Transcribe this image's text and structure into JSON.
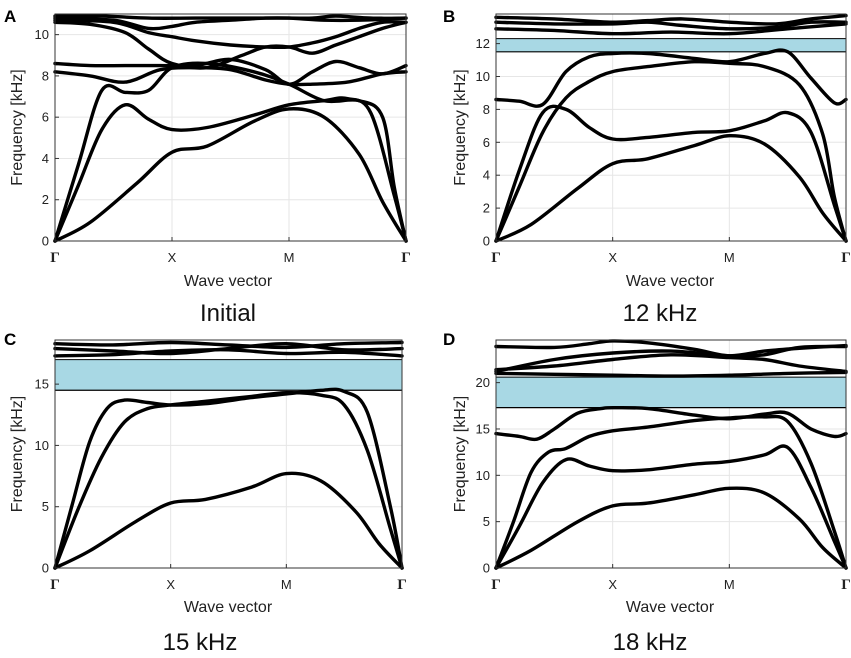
{
  "figure": {
    "panels": [
      {
        "letter": "A",
        "caption": "Initial"
      },
      {
        "letter": "B",
        "caption": "12 kHz"
      },
      {
        "letter": "C",
        "caption": "15 kHz"
      },
      {
        "letter": "D",
        "caption": "18 kHz"
      }
    ]
  },
  "colors": {
    "band_gap": "#a8d8e4",
    "curve": "#000000",
    "grid": "#e6e6e6"
  },
  "chart_data": [
    {
      "type": "line",
      "panel": "A",
      "caption": "Initial",
      "xlabel": "Wave vector",
      "ylabel": "Frequency [kHz]",
      "x_ticks": [
        0,
        1,
        2,
        3
      ],
      "x_tick_labels": [
        "Γ",
        "X",
        "M",
        "Γ"
      ],
      "xlim": [
        0,
        3
      ],
      "ylim": [
        0,
        11
      ],
      "y_ticks": [
        0,
        2,
        4,
        6,
        8,
        10
      ],
      "band_gap": null,
      "series": [
        {
          "name": "band 1",
          "x": [
            0,
            0.3,
            0.7,
            1.0,
            1.3,
            1.7,
            2.0,
            2.3,
            2.6,
            2.8,
            3.0
          ],
          "y": [
            0,
            0.9,
            2.8,
            4.3,
            4.6,
            5.8,
            6.4,
            6.0,
            4.2,
            1.9,
            0
          ]
        },
        {
          "name": "band 2",
          "x": [
            0,
            0.2,
            0.4,
            0.6,
            0.8,
            1.0,
            1.3,
            1.7,
            2.0,
            2.3,
            2.5,
            2.7,
            2.9,
            3.0
          ],
          "y": [
            0,
            2.7,
            5.4,
            6.6,
            5.9,
            5.4,
            5.5,
            6.1,
            6.6,
            6.8,
            6.9,
            6.2,
            2.2,
            0
          ]
        },
        {
          "name": "band 3",
          "x": [
            0,
            0.2,
            0.4,
            0.6,
            0.8,
            1.0,
            1.3,
            1.7,
            2.0,
            2.3,
            2.6,
            2.8,
            2.9,
            3.0
          ],
          "y": [
            0,
            3.7,
            7.3,
            7.2,
            7.3,
            8.4,
            8.6,
            8.2,
            7.6,
            6.8,
            6.8,
            6.0,
            2.6,
            0
          ]
        },
        {
          "name": "band 4",
          "x": [
            0,
            0.3,
            0.6,
            0.9,
            1.2,
            1.5,
            1.8,
            2.0,
            2.2,
            2.5,
            2.8,
            3.0
          ],
          "y": [
            8.2,
            8.0,
            7.7,
            8.3,
            8.4,
            8.3,
            7.8,
            7.6,
            7.6,
            7.7,
            8.1,
            8.2
          ]
        },
        {
          "name": "band 5",
          "x": [
            0,
            0.3,
            0.6,
            0.9,
            1.2,
            1.5,
            1.8,
            2.0,
            2.2,
            2.4,
            2.6,
            2.8,
            3.0
          ],
          "y": [
            8.6,
            8.5,
            8.5,
            8.5,
            8.5,
            8.8,
            8.3,
            7.6,
            8.2,
            8.7,
            8.4,
            8.1,
            8.5
          ]
        },
        {
          "name": "band 6",
          "x": [
            0,
            0.3,
            0.6,
            0.8,
            1.0,
            1.3,
            1.6,
            1.8,
            2.0,
            2.2,
            2.4,
            2.6,
            2.8,
            3.0
          ],
          "y": [
            10.6,
            10.5,
            10.1,
            9.3,
            8.6,
            8.4,
            9.0,
            9.4,
            9.4,
            9.1,
            9.5,
            9.9,
            10.3,
            10.6
          ]
        },
        {
          "name": "band 7",
          "x": [
            0,
            0.5,
            0.8,
            1.0,
            1.2,
            1.5,
            1.8,
            2.0,
            2.2,
            2.4,
            2.6,
            2.8,
            3.0
          ],
          "y": [
            10.7,
            10.6,
            10.1,
            9.9,
            9.7,
            9.5,
            9.4,
            9.4,
            9.6,
            9.9,
            10.3,
            10.6,
            10.6
          ]
        },
        {
          "name": "band 8",
          "x": [
            0,
            0.5,
            0.8,
            1.0,
            1.2,
            1.5,
            1.8,
            2.0,
            2.3,
            2.6,
            3.0
          ],
          "y": [
            10.8,
            10.7,
            10.3,
            10.4,
            10.6,
            10.7,
            10.8,
            10.8,
            10.7,
            10.7,
            10.8
          ]
        },
        {
          "name": "band 9",
          "x": [
            0,
            0.4,
            0.8,
            1.2,
            1.6,
            2.0,
            2.2,
            2.4,
            2.7,
            3.0
          ],
          "y": [
            10.9,
            10.9,
            10.8,
            10.8,
            10.8,
            10.8,
            10.8,
            10.9,
            10.8,
            10.8
          ]
        }
      ]
    },
    {
      "type": "line",
      "panel": "B",
      "caption": "12 kHz",
      "xlabel": "Wave vector",
      "ylabel": "Frequency [kHz]",
      "x_ticks": [
        0,
        1,
        2,
        3
      ],
      "x_tick_labels": [
        "Γ",
        "X",
        "M",
        "Γ"
      ],
      "xlim": [
        0,
        3
      ],
      "ylim": [
        0,
        13.8
      ],
      "y_ticks": [
        0,
        2,
        4,
        6,
        8,
        10,
        12
      ],
      "band_gap": [
        11.5,
        12.3
      ],
      "series": [
        {
          "name": "band 1",
          "x": [
            0,
            0.3,
            0.7,
            1.0,
            1.3,
            1.7,
            2.0,
            2.3,
            2.6,
            2.8,
            3.0
          ],
          "y": [
            0,
            1.0,
            3.2,
            4.7,
            5.0,
            5.8,
            6.4,
            5.9,
            3.9,
            1.7,
            0
          ]
        },
        {
          "name": "band 2",
          "x": [
            0,
            0.2,
            0.4,
            0.6,
            0.8,
            1.0,
            1.3,
            1.7,
            2.0,
            2.3,
            2.5,
            2.7,
            2.9,
            3.0
          ],
          "y": [
            0,
            4.3,
            7.8,
            8.0,
            6.9,
            6.2,
            6.3,
            6.6,
            6.7,
            7.3,
            7.8,
            6.6,
            2.2,
            0
          ]
        },
        {
          "name": "band 3",
          "x": [
            0,
            0.2,
            0.4,
            0.6,
            0.8,
            1.0,
            1.3,
            1.7,
            2.0,
            2.3,
            2.6,
            2.8,
            2.9,
            3.0
          ],
          "y": [
            0,
            3.3,
            6.6,
            8.7,
            9.7,
            10.3,
            10.6,
            10.9,
            10.8,
            10.6,
            9.5,
            6.5,
            2.7,
            0
          ]
        },
        {
          "name": "band 4",
          "x": [
            0,
            0.2,
            0.4,
            0.6,
            0.8,
            1.0,
            1.3,
            1.7,
            2.0,
            2.3,
            2.5,
            2.7,
            2.9,
            3.0
          ],
          "y": [
            8.6,
            8.5,
            8.3,
            10.3,
            11.2,
            11.4,
            11.4,
            11.1,
            10.9,
            11.4,
            11.5,
            9.9,
            8.4,
            8.6
          ]
        },
        {
          "name": "band 5",
          "x": [
            0,
            0.5,
            1.0,
            1.5,
            2.0,
            2.5,
            3.0
          ],
          "y": [
            12.9,
            12.8,
            12.6,
            12.7,
            12.6,
            12.9,
            13.2
          ]
        },
        {
          "name": "band 6",
          "x": [
            0,
            0.5,
            1.0,
            1.3,
            1.6,
            2.0,
            2.4,
            2.7,
            3.0
          ],
          "y": [
            13.3,
            13.2,
            13.2,
            13.3,
            13.1,
            12.9,
            13.0,
            13.3,
            13.3
          ]
        },
        {
          "name": "band 7",
          "x": [
            0,
            0.5,
            1.0,
            1.3,
            1.6,
            2.0,
            2.4,
            2.7,
            3.0
          ],
          "y": [
            13.6,
            13.5,
            13.3,
            13.4,
            13.5,
            13.3,
            13.2,
            13.5,
            13.7
          ]
        }
      ]
    },
    {
      "type": "line",
      "panel": "C",
      "caption": "15 kHz",
      "xlabel": "Wave vector",
      "ylabel": "Frequency [kHz]",
      "x_ticks": [
        0,
        1,
        2,
        3
      ],
      "x_tick_labels": [
        "Γ",
        "X",
        "M",
        "Γ"
      ],
      "xlim": [
        0,
        3
      ],
      "ylim": [
        0,
        18.6
      ],
      "y_ticks": [
        0,
        5,
        10,
        15
      ],
      "band_gap": [
        14.5,
        17.0
      ],
      "series": [
        {
          "name": "band 1",
          "x": [
            0,
            0.3,
            0.7,
            1.0,
            1.3,
            1.7,
            2.0,
            2.3,
            2.6,
            2.8,
            3.0
          ],
          "y": [
            0,
            1.4,
            3.8,
            5.3,
            5.6,
            6.6,
            7.7,
            7.1,
            4.6,
            2.0,
            0
          ]
        },
        {
          "name": "band 2",
          "x": [
            0,
            0.2,
            0.4,
            0.6,
            0.8,
            1.0,
            1.3,
            1.7,
            2.0,
            2.3,
            2.5,
            2.7,
            2.9,
            3.0
          ],
          "y": [
            0,
            4.8,
            9.0,
            11.9,
            13.0,
            13.3,
            13.6,
            14.0,
            14.3,
            14.1,
            13.3,
            9.6,
            3.2,
            0
          ]
        },
        {
          "name": "band 3",
          "x": [
            0,
            0.15,
            0.3,
            0.45,
            0.6,
            0.8,
            1.0,
            1.3,
            1.7,
            2.0,
            2.3,
            2.5,
            2.7,
            2.9,
            3.0
          ],
          "y": [
            0,
            5.2,
            10.3,
            13.0,
            13.7,
            13.5,
            13.3,
            13.4,
            13.9,
            14.2,
            14.5,
            14.4,
            12.7,
            5.0,
            0
          ]
        },
        {
          "name": "band 4",
          "x": [
            0,
            0.5,
            1.0,
            1.5,
            2.0,
            2.5,
            3.0
          ],
          "y": [
            17.3,
            17.4,
            17.7,
            17.8,
            17.5,
            17.6,
            17.3
          ]
        },
        {
          "name": "band 5",
          "x": [
            0,
            0.5,
            1.0,
            1.5,
            2.0,
            2.5,
            3.0
          ],
          "y": [
            17.9,
            17.7,
            17.5,
            17.9,
            18.3,
            17.8,
            17.9
          ]
        },
        {
          "name": "band 6",
          "x": [
            0,
            0.5,
            1.0,
            1.5,
            2.0,
            2.5,
            3.0
          ],
          "y": [
            18.3,
            18.2,
            18.4,
            18.2,
            18.0,
            18.3,
            18.4
          ]
        }
      ]
    },
    {
      "type": "line",
      "panel": "D",
      "caption": "18 kHz",
      "xlabel": "Wave vector",
      "ylabel": "Frequency [kHz]",
      "x_ticks": [
        0,
        1,
        2,
        3
      ],
      "x_tick_labels": [
        "Γ",
        "X",
        "M",
        "Γ"
      ],
      "xlim": [
        0,
        3
      ],
      "ylim": [
        0,
        24.6
      ],
      "y_ticks": [
        0,
        5,
        10,
        15,
        20
      ],
      "band_gap": [
        17.3,
        20.6
      ],
      "series": [
        {
          "name": "band 1",
          "x": [
            0,
            0.3,
            0.7,
            1.0,
            1.3,
            1.7,
            2.0,
            2.3,
            2.6,
            2.8,
            3.0
          ],
          "y": [
            0,
            1.9,
            5.0,
            6.7,
            7.0,
            7.9,
            8.6,
            8.1,
            5.3,
            2.2,
            0
          ]
        },
        {
          "name": "band 2",
          "x": [
            0,
            0.2,
            0.4,
            0.6,
            0.8,
            1.0,
            1.3,
            1.7,
            2.0,
            2.3,
            2.5,
            2.7,
            2.9,
            3.0
          ],
          "y": [
            0,
            4.5,
            9.2,
            11.7,
            11.0,
            10.5,
            10.6,
            11.2,
            11.5,
            12.2,
            13.0,
            8.7,
            2.9,
            0
          ]
        },
        {
          "name": "band 3",
          "x": [
            0,
            0.15,
            0.3,
            0.45,
            0.6,
            0.8,
            1.0,
            1.3,
            1.7,
            2.0,
            2.3,
            2.5,
            2.7,
            2.9,
            3.0
          ],
          "y": [
            0,
            5.0,
            10.3,
            12.5,
            12.9,
            14.2,
            14.8,
            15.2,
            15.9,
            16.2,
            16.3,
            15.8,
            11.3,
            4.0,
            0
          ]
        },
        {
          "name": "band 4",
          "x": [
            0,
            0.2,
            0.35,
            0.5,
            0.7,
            0.9,
            1.0,
            1.3,
            1.7,
            2.0,
            2.3,
            2.5,
            2.7,
            2.9,
            3.0
          ],
          "y": [
            14.5,
            14.2,
            13.9,
            15.0,
            16.7,
            17.2,
            17.3,
            17.2,
            16.5,
            16.1,
            16.6,
            16.7,
            15.0,
            14.2,
            14.5
          ]
        },
        {
          "name": "band 5",
          "x": [
            0,
            0.5,
            1.0,
            1.5,
            2.0,
            2.5,
            3.0
          ],
          "y": [
            21.0,
            20.9,
            20.8,
            20.7,
            20.8,
            21.0,
            21.1
          ]
        },
        {
          "name": "band 6",
          "x": [
            0,
            0.5,
            1.0,
            1.5,
            2.0,
            2.3,
            2.6,
            3.0
          ],
          "y": [
            21.4,
            21.8,
            22.5,
            23.0,
            22.7,
            22.5,
            21.8,
            21.2
          ]
        },
        {
          "name": "band 7",
          "x": [
            0,
            0.5,
            1.0,
            1.5,
            2.0,
            2.3,
            2.6,
            3.0
          ],
          "y": [
            21.2,
            22.5,
            23.2,
            23.4,
            22.9,
            23.0,
            23.8,
            23.9
          ]
        },
        {
          "name": "band 8",
          "x": [
            0,
            0.5,
            0.8,
            1.0,
            1.3,
            1.7,
            2.0,
            2.3,
            2.6,
            3.0
          ],
          "y": [
            23.9,
            23.8,
            24.2,
            24.5,
            24.3,
            23.6,
            22.9,
            23.4,
            23.7,
            24.0
          ]
        }
      ]
    }
  ]
}
